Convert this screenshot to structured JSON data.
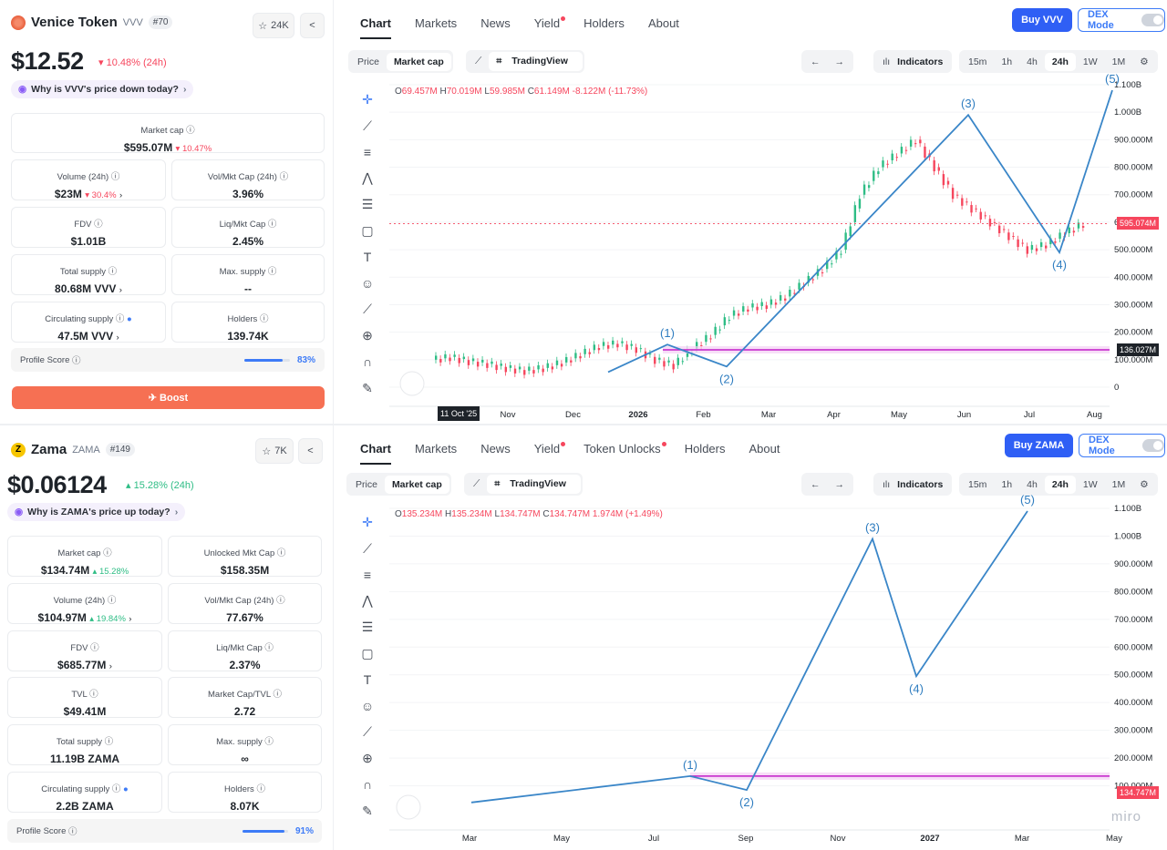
{
  "panels": [
    {
      "token": {
        "name": "Venice Token",
        "symbol": "VVV",
        "rank": "#70",
        "star_count": "24K",
        "logo_color": "#e85d3a"
      },
      "price": "$12.52",
      "price_change": "10.48% (24h)",
      "price_dir": "down",
      "why": "Why is VVV's price down today?",
      "stats": {
        "market_cap": {
          "label": "Market cap",
          "value": "$595.07M",
          "change": "10.47%"
        },
        "volume": {
          "label": "Volume (24h)",
          "value": "$23M",
          "change": "30.4%"
        },
        "vol_mkt": {
          "label": "Vol/Mkt Cap (24h)",
          "value": "3.96%"
        },
        "fdv": {
          "label": "FDV",
          "value": "$1.01B"
        },
        "liq_mkt": {
          "label": "Liq/Mkt Cap",
          "value": "2.45%"
        },
        "total_supply": {
          "label": "Total supply",
          "value": "80.68M VVV"
        },
        "max_supply": {
          "label": "Max. supply",
          "value": "--"
        },
        "circ_supply": {
          "label": "Circulating supply",
          "value": "47.5M VVV"
        },
        "holders": {
          "label": "Holders",
          "value": "139.74K"
        }
      },
      "profile_score": {
        "label": "Profile Score",
        "value": "83%",
        "fraction": 0.83
      },
      "boost": "Boost",
      "tabs": [
        "Chart",
        "Markets",
        "News",
        "Yield",
        "Holders",
        "About"
      ],
      "buy": "Buy VVV",
      "dex": "DEX Mode",
      "seg_price": "Price",
      "seg_mcap": "Market cap",
      "tv": "TradingView",
      "indicators": "Indicators",
      "intervals": [
        "15m",
        "1h",
        "4h",
        "24h",
        "1W",
        "1M"
      ],
      "ohlc": {
        "o": "69.457M",
        "h": "70.019M",
        "l": "59.985M",
        "c": "61.149M",
        "chg": "-8.122M (-11.73%)"
      },
      "price_tag": "595.074M",
      "level_tag": "136.027M",
      "date_tag": "11 Oct '25"
    },
    {
      "token": {
        "name": "Zama",
        "symbol": "ZAMA",
        "rank": "#149",
        "star_count": "7K",
        "logo_color": "#f7c600"
      },
      "price": "$0.06124",
      "price_change": "15.28% (24h)",
      "price_dir": "up",
      "why": "Why is ZAMA's price up today?",
      "stats": {
        "market_cap": {
          "label": "Market cap",
          "value": "$134.74M",
          "change": "15.28%"
        },
        "unlocked": {
          "label": "Unlocked Mkt Cap",
          "value": "$158.35M"
        },
        "volume": {
          "label": "Volume (24h)",
          "value": "$104.97M",
          "change": "19.84%"
        },
        "vol_mkt": {
          "label": "Vol/Mkt Cap (24h)",
          "value": "77.67%"
        },
        "fdv": {
          "label": "FDV",
          "value": "$685.77M"
        },
        "liq_mkt": {
          "label": "Liq/Mkt Cap",
          "value": "2.37%"
        },
        "tvl": {
          "label": "TVL",
          "value": "$49.41M"
        },
        "mcap_tvl": {
          "label": "Market Cap/TVL",
          "value": "2.72"
        },
        "total_supply": {
          "label": "Total supply",
          "value": "11.19B ZAMA"
        },
        "max_supply": {
          "label": "Max. supply",
          "value": "∞"
        },
        "circ_supply": {
          "label": "Circulating supply",
          "value": "2.2B ZAMA"
        },
        "holders": {
          "label": "Holders",
          "value": "8.07K"
        }
      },
      "profile_score": {
        "label": "Profile Score",
        "value": "91%",
        "fraction": 0.91
      },
      "tabs": [
        "Chart",
        "Markets",
        "News",
        "Yield",
        "Token Unlocks",
        "Holders",
        "About"
      ],
      "buy": "Buy ZAMA",
      "dex": "DEX Mode",
      "seg_price": "Price",
      "seg_mcap": "Market cap",
      "tv": "TradingView",
      "indicators": "Indicators",
      "intervals": [
        "15m",
        "1h",
        "4h",
        "24h",
        "1W",
        "1M"
      ],
      "ohlc": {
        "o": "135.234M",
        "h": "135.234M",
        "l": "134.747M",
        "c": "134.747M",
        "chg": "1.974M (+1.49%)"
      },
      "price_tag": "134.747M"
    }
  ],
  "chart_data": [
    {
      "type": "line",
      "ylabel": "",
      "yticks": [
        "1.100B",
        "1.000B",
        "900.000M",
        "800.000M",
        "700.000M",
        "600.000M",
        "500.000M",
        "400.000M",
        "300.000M",
        "200.000M",
        "100.000M",
        "0"
      ],
      "xticks": [
        "Nov",
        "Dec",
        "2026",
        "Feb",
        "Mar",
        "Apr",
        "May",
        "Jun",
        "Jul",
        "Aug"
      ],
      "series": [
        {
          "values": [
            100,
            110,
            95,
            85,
            70,
            60,
            70,
            90,
            120,
            150,
            160,
            140,
            100,
            80,
            140,
            190,
            260,
            290,
            300,
            330,
            380,
            430,
            500,
            700,
            800,
            850,
            900,
            800,
            700,
            650,
            600,
            550,
            500,
            520,
            560,
            595
          ]
        }
      ],
      "wave_labels": [
        "(1)",
        "(2)",
        "(3)",
        "(4)",
        "(5)"
      ],
      "wave_points_millions": [
        155,
        75,
        990,
        490,
        1080
      ]
    },
    {
      "type": "line",
      "yticks": [
        "1.100B",
        "1.000B",
        "900.000M",
        "800.000M",
        "700.000M",
        "600.000M",
        "500.000M",
        "400.000M",
        "300.000M",
        "200.000M",
        "100.000M"
      ],
      "xticks": [
        "Mar",
        "May",
        "Jul",
        "Sep",
        "Nov",
        "2027",
        "Mar",
        "May"
      ],
      "wave_labels": [
        "(1)",
        "(2)",
        "(3)",
        "(4)",
        "(5)"
      ],
      "wave_points_millions": [
        135,
        85,
        990,
        495,
        1090
      ]
    }
  ],
  "watermark": "miro"
}
